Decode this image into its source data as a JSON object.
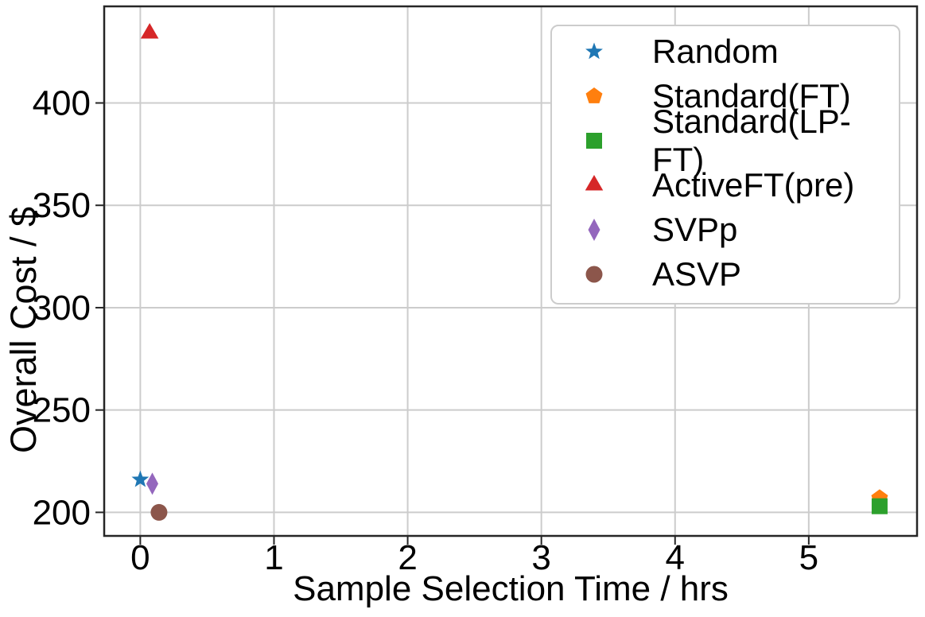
{
  "chart_data": {
    "type": "scatter",
    "title": "",
    "xlabel": "Sample Selection Time / hrs",
    "ylabel": "Overall Cost / $",
    "xlim": [
      -0.27,
      5.81
    ],
    "ylim": [
      188.5,
      447.2
    ],
    "xticks": [
      0,
      1,
      2,
      3,
      4,
      5
    ],
    "yticks": [
      200,
      250,
      300,
      350,
      400
    ],
    "grid": true,
    "legend_position": "upper right",
    "series": [
      {
        "name": "Random",
        "marker": "star",
        "color": "#1f77b4",
        "points": [
          [
            0.0,
            216
          ]
        ]
      },
      {
        "name": "Standard(FT)",
        "marker": "pentagon",
        "color": "#ff7f0e",
        "points": [
          [
            5.53,
            207
          ]
        ]
      },
      {
        "name": "Standard(LP-FT)",
        "marker": "square",
        "color": "#2ca02c",
        "points": [
          [
            5.53,
            203
          ]
        ]
      },
      {
        "name": "ActiveFT(pre)",
        "marker": "triangle",
        "color": "#d62728",
        "points": [
          [
            0.07,
            434
          ]
        ]
      },
      {
        "name": "SVPp",
        "marker": "thin-diamond",
        "color": "#9467bd",
        "points": [
          [
            0.09,
            214
          ]
        ]
      },
      {
        "name": "ASVP",
        "marker": "circle",
        "color": "#8c564b",
        "points": [
          [
            0.14,
            200
          ]
        ]
      }
    ],
    "styles": {
      "grid_color": "#cccccc",
      "spine_color": "#262626",
      "text_color": "#000000",
      "background": "#ffffff"
    }
  }
}
